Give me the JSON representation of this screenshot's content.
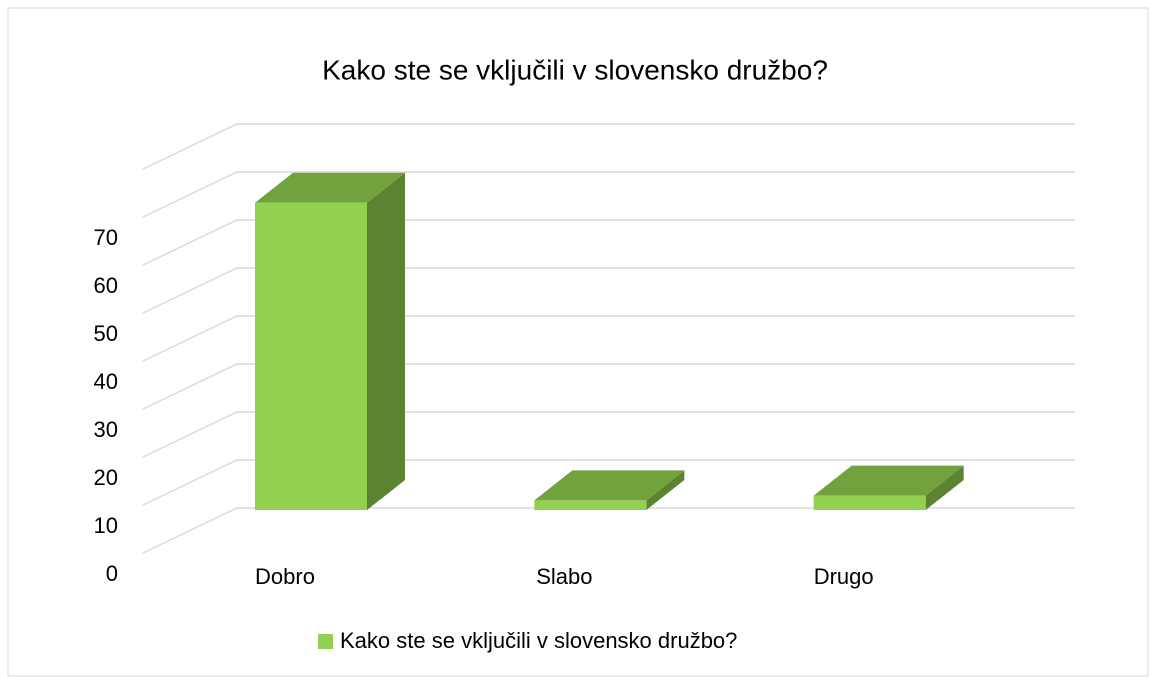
{
  "chart_data": {
    "type": "bar3d",
    "title": "Kako ste se vključili v slovensko družbo?",
    "categories": [
      "Dobro",
      "Slabo",
      "Drugo"
    ],
    "series": [
      {
        "name": "Kako ste se vključili v slovensko družbo?",
        "color": "#92d050",
        "values": [
          64,
          2,
          3
        ]
      }
    ],
    "ylim": [
      0,
      80
    ],
    "yticks": [
      0,
      10,
      20,
      30,
      40,
      50,
      60,
      70
    ],
    "grid": true
  }
}
